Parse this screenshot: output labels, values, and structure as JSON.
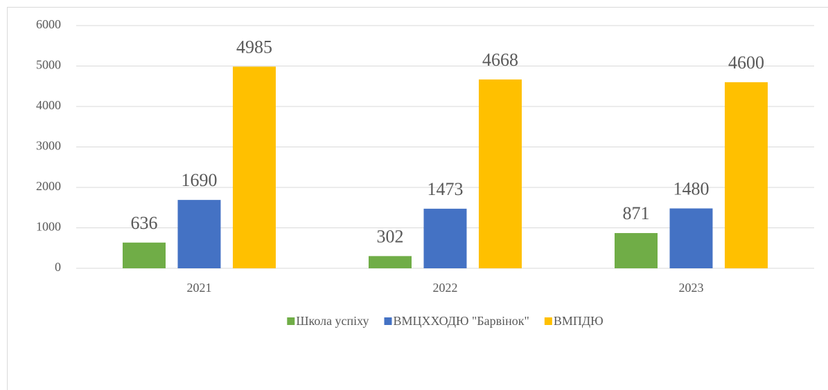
{
  "chart_data": {
    "type": "bar",
    "categories": [
      "2021",
      "2022",
      "2023"
    ],
    "series": [
      {
        "name": "Школа успіху",
        "color": "#70ad47",
        "values": [
          636,
          302,
          871
        ]
      },
      {
        "name": "ВМЦХХОДЮ \"Барвінок\"",
        "color": "#4472c4",
        "values": [
          1690,
          1473,
          1480
        ]
      },
      {
        "name": "ВМПДЮ",
        "color": "#ffc000",
        "values": [
          4985,
          4668,
          4600
        ]
      }
    ],
    "ylim": [
      0,
      6000
    ],
    "yticks": [
      0,
      1000,
      2000,
      3000,
      4000,
      5000,
      6000
    ],
    "grid": true,
    "legend": "bottom"
  }
}
